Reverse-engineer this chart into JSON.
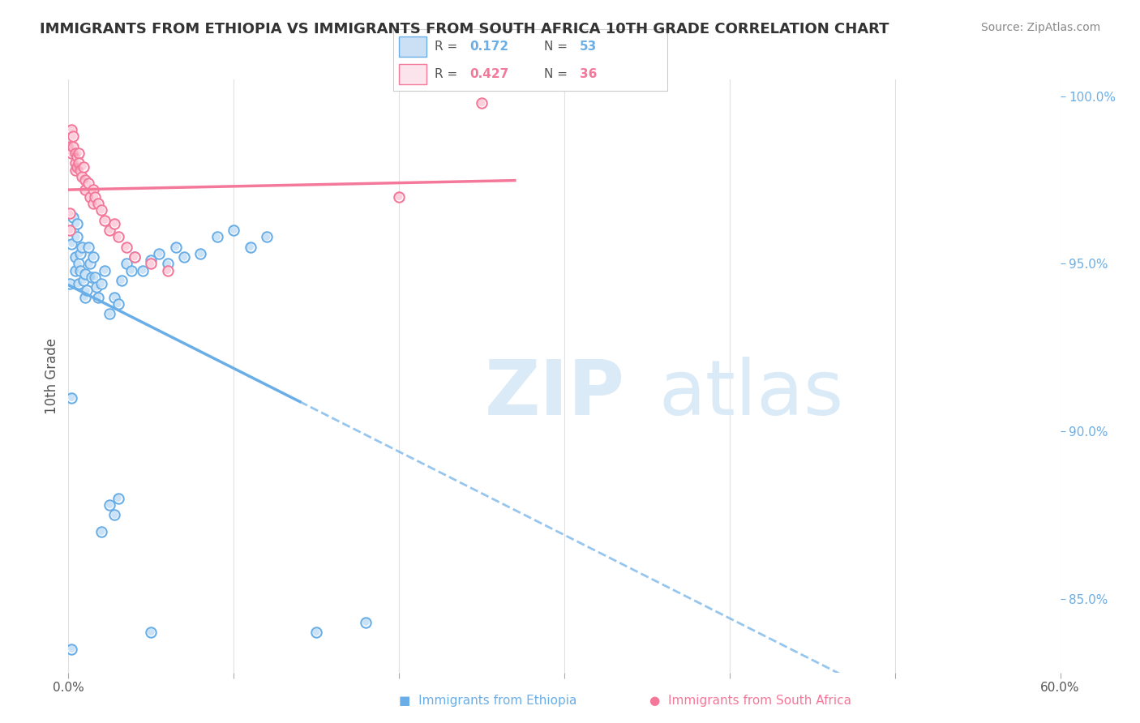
{
  "title": "IMMIGRANTS FROM ETHIOPIA VS IMMIGRANTS FROM SOUTH AFRICA 10TH GRADE CORRELATION CHART",
  "source": "Source: ZipAtlas.com",
  "ylabel": "10th Grade",
  "xlim": [
    0.0,
    0.6
  ],
  "ylim": [
    0.828,
    1.005
  ],
  "xticks": [
    0.0,
    0.1,
    0.2,
    0.3,
    0.4,
    0.5,
    0.6
  ],
  "yticks_right": [
    0.85,
    0.9,
    0.95,
    1.0
  ],
  "ytick_right_labels": [
    "85.0%",
    "90.0%",
    "95.0%",
    "100.0%"
  ],
  "legend_r_blue": "0.172",
  "legend_n_blue": "53",
  "legend_r_pink": "0.427",
  "legend_n_pink": "36",
  "blue_color": "#6aaee8",
  "pink_color": "#f4789a",
  "blue_scatter": [
    [
      0.001,
      0.944
    ],
    [
      0.002,
      0.956
    ],
    [
      0.003,
      0.96
    ],
    [
      0.003,
      0.964
    ],
    [
      0.004,
      0.952
    ],
    [
      0.004,
      0.948
    ],
    [
      0.005,
      0.962
    ],
    [
      0.005,
      0.958
    ],
    [
      0.006,
      0.95
    ],
    [
      0.006,
      0.944
    ],
    [
      0.007,
      0.953
    ],
    [
      0.007,
      0.948
    ],
    [
      0.008,
      0.955
    ],
    [
      0.009,
      0.945
    ],
    [
      0.01,
      0.947
    ],
    [
      0.01,
      0.94
    ],
    [
      0.011,
      0.942
    ],
    [
      0.012,
      0.955
    ],
    [
      0.013,
      0.95
    ],
    [
      0.014,
      0.946
    ],
    [
      0.015,
      0.952
    ],
    [
      0.016,
      0.946
    ],
    [
      0.017,
      0.943
    ],
    [
      0.018,
      0.94
    ],
    [
      0.02,
      0.944
    ],
    [
      0.022,
      0.948
    ],
    [
      0.025,
      0.935
    ],
    [
      0.028,
      0.94
    ],
    [
      0.03,
      0.938
    ],
    [
      0.032,
      0.945
    ],
    [
      0.035,
      0.95
    ],
    [
      0.038,
      0.948
    ],
    [
      0.04,
      0.952
    ],
    [
      0.045,
      0.948
    ],
    [
      0.05,
      0.951
    ],
    [
      0.055,
      0.953
    ],
    [
      0.06,
      0.95
    ],
    [
      0.065,
      0.955
    ],
    [
      0.07,
      0.952
    ],
    [
      0.08,
      0.953
    ],
    [
      0.09,
      0.958
    ],
    [
      0.1,
      0.96
    ],
    [
      0.11,
      0.955
    ],
    [
      0.12,
      0.958
    ],
    [
      0.002,
      0.835
    ],
    [
      0.05,
      0.84
    ],
    [
      0.15,
      0.84
    ],
    [
      0.18,
      0.843
    ],
    [
      0.02,
      0.87
    ],
    [
      0.025,
      0.878
    ],
    [
      0.028,
      0.875
    ],
    [
      0.03,
      0.88
    ],
    [
      0.002,
      0.91
    ]
  ],
  "pink_scatter": [
    [
      0.001,
      0.985
    ],
    [
      0.002,
      0.99
    ],
    [
      0.002,
      0.983
    ],
    [
      0.003,
      0.988
    ],
    [
      0.003,
      0.985
    ],
    [
      0.004,
      0.983
    ],
    [
      0.004,
      0.98
    ],
    [
      0.004,
      0.978
    ],
    [
      0.005,
      0.982
    ],
    [
      0.005,
      0.979
    ],
    [
      0.006,
      0.983
    ],
    [
      0.006,
      0.98
    ],
    [
      0.007,
      0.978
    ],
    [
      0.008,
      0.976
    ],
    [
      0.009,
      0.979
    ],
    [
      0.01,
      0.975
    ],
    [
      0.01,
      0.972
    ],
    [
      0.012,
      0.974
    ],
    [
      0.013,
      0.97
    ],
    [
      0.015,
      0.972
    ],
    [
      0.015,
      0.968
    ],
    [
      0.016,
      0.97
    ],
    [
      0.018,
      0.968
    ],
    [
      0.02,
      0.966
    ],
    [
      0.022,
      0.963
    ],
    [
      0.025,
      0.96
    ],
    [
      0.028,
      0.962
    ],
    [
      0.03,
      0.958
    ],
    [
      0.035,
      0.955
    ],
    [
      0.04,
      0.952
    ],
    [
      0.05,
      0.95
    ],
    [
      0.06,
      0.948
    ],
    [
      0.2,
      0.97
    ],
    [
      0.25,
      0.998
    ],
    [
      0.001,
      0.965
    ],
    [
      0.001,
      0.96
    ]
  ],
  "background_color": "#ffffff",
  "grid_color": "#e0e0e0"
}
